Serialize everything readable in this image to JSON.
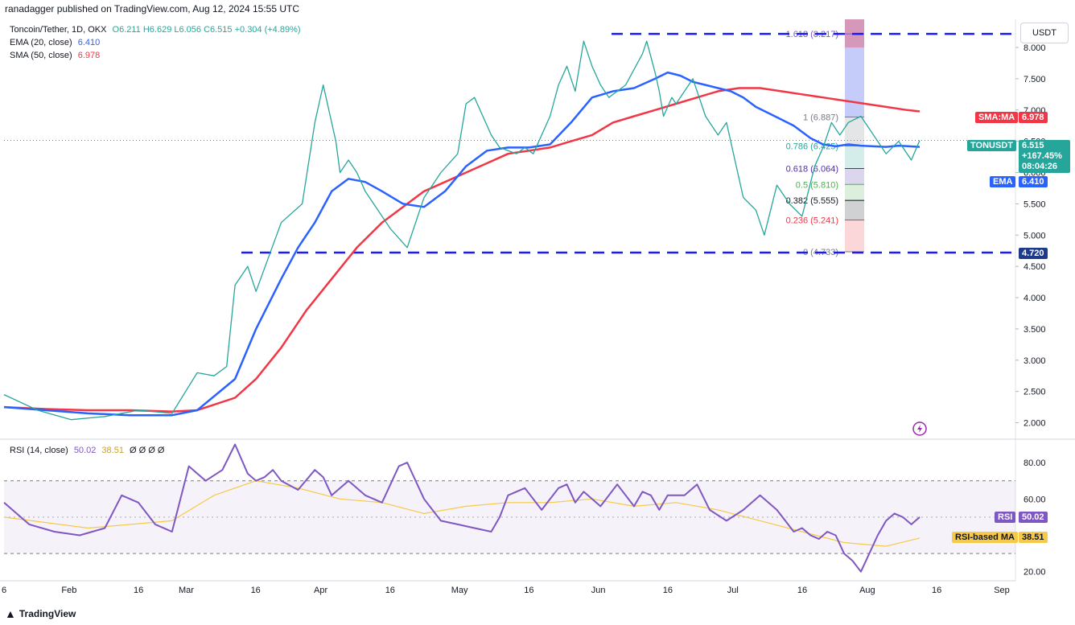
{
  "header": "ranadagger published on TradingView.com, Aug 12, 2024 15:55 UTC",
  "legend": {
    "symbol": "Toncoin/Tether, 1D, OKX",
    "ohlc": "O6.211  H6.629  L6.056  C6.515  +0.304 (+4.89%)",
    "ema_label": "EMA (20, close)",
    "ema_value": "6.410",
    "sma_label": "SMA (50, close)",
    "sma_value": "6.978",
    "rsi_label": "RSI (14, close)",
    "rsi_value": "50.02",
    "rsi_ma_value": "38.51",
    "rsi_extra": "Ø Ø Ø Ø"
  },
  "currency": "USDT",
  "footer": "TradingView",
  "price_tags": {
    "sma_label": "SMA:MA",
    "sma_value": "6.978",
    "ton_label": "TONUSDT",
    "ton_value": "6.515",
    "ton_change": "+167.45%",
    "ton_timer": "08:04:26",
    "ema_label": "EMA",
    "ema_value": "6.410",
    "support_value": "4.720",
    "rsi_label": "RSI",
    "rsi_value": "50.02",
    "rsi_ma_label": "RSI-based MA",
    "rsi_ma_value": "38.51"
  },
  "fib_levels": [
    {
      "label": "1.618 (8.217)",
      "price": 8.217,
      "color": "#7e57c2"
    },
    {
      "label": "1 (6.887)",
      "price": 6.887,
      "color": "#787b86"
    },
    {
      "label": "0.786 (6.425)",
      "price": 6.425,
      "color": "#26a69a"
    },
    {
      "label": "0.618 (6.064)",
      "price": 6.064,
      "color": "#512da8"
    },
    {
      "label": "0.5 (5.810)",
      "price": 5.81,
      "color": "#4caf50"
    },
    {
      "label": "0.382 (5.555)",
      "price": 5.555,
      "color": "#131722"
    },
    {
      "label": "0.236 (5.241)",
      "price": 5.241,
      "color": "#f23645"
    },
    {
      "label": "0 (4.733)",
      "price": 4.733,
      "color": "#787b86"
    }
  ],
  "chart_data": {
    "type": "line",
    "title": "Toncoin/Tether, 1D, OKX",
    "y_ticks": [
      "8.000",
      "7.500",
      "7.000",
      "6.500",
      "6.000",
      "5.500",
      "5.000",
      "4.500",
      "4.000",
      "3.500",
      "3.000",
      "2.500",
      "2.000"
    ],
    "x_ticks": [
      "6",
      "Feb",
      "16",
      "Mar",
      "16",
      "Apr",
      "16",
      "May",
      "16",
      "Jun",
      "16",
      "Jul",
      "16",
      "Aug",
      "16",
      "Sep"
    ],
    "rsi_ticks": [
      "80.00",
      "60.00",
      "40.00",
      "20.00"
    ],
    "price_ylim": [
      1.75,
      8.45
    ],
    "resistance": 8.217,
    "support": 4.72,
    "last_close": 6.515,
    "series": [
      {
        "name": "TONUSDT",
        "color": "#26a69a",
        "x": [
          0,
          8,
          16,
          24,
          32,
          40,
          46,
          50,
          53,
          55,
          58,
          60,
          66,
          71,
          74,
          76,
          79,
          80,
          82,
          84,
          86,
          88,
          92,
          96,
          100,
          102,
          104,
          108,
          110,
          112,
          116,
          118,
          122,
          124,
          126,
          130,
          132,
          134,
          136,
          138,
          140,
          142,
          144,
          146,
          148,
          152,
          153,
          155,
          156,
          157,
          159,
          160,
          162,
          164,
          166,
          167,
          170,
          172,
          174,
          176,
          179,
          181,
          184,
          187,
          190,
          193,
          195,
          197,
          199,
          201,
          204,
          207,
          210,
          213,
          216,
          218
        ],
        "values": [
          2.45,
          2.2,
          2.05,
          2.1,
          2.2,
          2.15,
          2.8,
          2.75,
          2.9,
          4.2,
          4.5,
          4.1,
          5.2,
          5.5,
          6.8,
          7.4,
          6.5,
          6.0,
          6.2,
          6.0,
          5.7,
          5.5,
          5.1,
          4.8,
          5.6,
          5.8,
          6.0,
          6.3,
          7.1,
          7.2,
          6.6,
          6.4,
          6.3,
          6.4,
          6.3,
          6.9,
          7.4,
          7.7,
          7.3,
          8.1,
          7.7,
          7.4,
          7.2,
          7.3,
          7.4,
          7.9,
          8.1,
          7.6,
          7.3,
          6.9,
          7.2,
          7.1,
          7.3,
          7.5,
          7.1,
          6.9,
          6.6,
          6.8,
          6.2,
          5.6,
          5.4,
          5.0,
          5.8,
          5.5,
          5.3,
          6.1,
          6.4,
          6.8,
          6.6,
          6.8,
          6.9,
          6.6,
          6.3,
          6.5,
          6.2,
          6.515
        ]
      },
      {
        "name": "EMA",
        "color": "#2962ff",
        "x": [
          0,
          10,
          20,
          30,
          40,
          46,
          55,
          60,
          66,
          70,
          74,
          78,
          82,
          86,
          90,
          95,
          100,
          105,
          110,
          115,
          120,
          125,
          130,
          135,
          140,
          145,
          150,
          155,
          158,
          161,
          164,
          167,
          170,
          173,
          176,
          179,
          182,
          185,
          188,
          192,
          195,
          198,
          201,
          204,
          207,
          210,
          213,
          218
        ],
        "values": [
          2.25,
          2.2,
          2.15,
          2.12,
          2.12,
          2.2,
          2.7,
          3.5,
          4.3,
          4.8,
          5.2,
          5.7,
          5.9,
          5.85,
          5.7,
          5.5,
          5.45,
          5.7,
          6.1,
          6.35,
          6.4,
          6.4,
          6.45,
          6.8,
          7.2,
          7.3,
          7.35,
          7.5,
          7.6,
          7.55,
          7.45,
          7.4,
          7.35,
          7.3,
          7.2,
          7.05,
          6.95,
          6.85,
          6.75,
          6.55,
          6.45,
          6.42,
          6.45,
          6.43,
          6.42,
          6.41,
          6.43,
          6.41
        ]
      },
      {
        "name": "SMA",
        "color": "#f23645",
        "x": [
          0,
          10,
          20,
          30,
          40,
          46,
          55,
          60,
          66,
          72,
          78,
          84,
          90,
          96,
          100,
          105,
          110,
          115,
          120,
          125,
          130,
          135,
          140,
          145,
          150,
          155,
          160,
          165,
          170,
          175,
          180,
          185,
          190,
          195,
          200,
          205,
          210,
          215,
          218
        ],
        "values": [
          2.25,
          2.22,
          2.2,
          2.2,
          2.18,
          2.2,
          2.4,
          2.7,
          3.2,
          3.8,
          4.3,
          4.8,
          5.2,
          5.5,
          5.7,
          5.85,
          6.0,
          6.15,
          6.3,
          6.35,
          6.4,
          6.5,
          6.6,
          6.8,
          6.9,
          7.0,
          7.1,
          7.2,
          7.3,
          7.35,
          7.35,
          7.3,
          7.25,
          7.2,
          7.15,
          7.1,
          7.05,
          7.0,
          6.978
        ]
      }
    ],
    "rsi": {
      "ylim": [
        15,
        92
      ],
      "bands": [
        70,
        30
      ],
      "series": [
        {
          "name": "RSI",
          "color": "#7e57c2",
          "x": [
            0,
            6,
            12,
            18,
            24,
            28,
            32,
            36,
            40,
            44,
            48,
            52,
            55,
            58,
            60,
            62,
            64,
            66,
            70,
            74,
            76,
            78,
            82,
            86,
            90,
            94,
            96,
            100,
            104,
            108,
            112,
            116,
            118,
            120,
            124,
            128,
            132,
            134,
            136,
            138,
            142,
            144,
            146,
            150,
            152,
            154,
            156,
            158,
            162,
            165,
            168,
            172,
            176,
            180,
            184,
            186,
            188,
            190,
            192,
            194,
            196,
            198,
            200,
            202,
            204,
            206,
            208,
            210,
            212,
            214,
            216,
            218
          ],
          "values": [
            58,
            46,
            42,
            40,
            44,
            62,
            58,
            46,
            42,
            78,
            70,
            76,
            90,
            74,
            70,
            72,
            76,
            70,
            65,
            76,
            72,
            62,
            70,
            62,
            58,
            78,
            80,
            60,
            48,
            46,
            44,
            42,
            50,
            62,
            66,
            54,
            66,
            68,
            58,
            64,
            56,
            62,
            68,
            56,
            64,
            62,
            54,
            62,
            62,
            68,
            54,
            48,
            54,
            62,
            54,
            48,
            42,
            44,
            40,
            38,
            42,
            40,
            30,
            26,
            20,
            30,
            40,
            48,
            52,
            50,
            46,
            50.02
          ]
        },
        {
          "name": "RSI-based MA",
          "color": "#f7c948",
          "x": [
            0,
            20,
            40,
            50,
            60,
            70,
            80,
            90,
            100,
            110,
            120,
            130,
            140,
            150,
            160,
            170,
            180,
            190,
            200,
            210,
            218
          ],
          "values": [
            50,
            44,
            48,
            62,
            70,
            66,
            60,
            58,
            52,
            56,
            58,
            58,
            60,
            56,
            58,
            54,
            48,
            42,
            36,
            34,
            38.51
          ]
        }
      ]
    }
  }
}
